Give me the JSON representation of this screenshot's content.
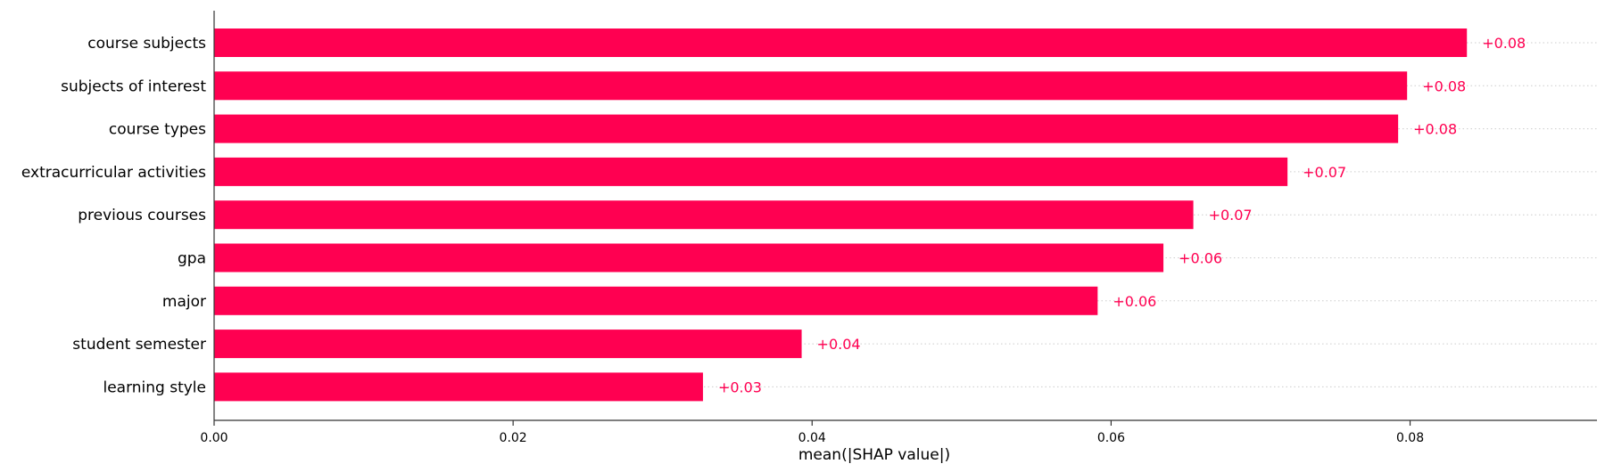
{
  "chart_data": {
    "type": "bar",
    "orientation": "horizontal",
    "categories": [
      "course subjects",
      "subjects of interest",
      "course types",
      "extracurricular activities",
      "previous courses",
      "gpa",
      "major",
      "student semester",
      "learning style"
    ],
    "values": [
      0.0838,
      0.0798,
      0.0792,
      0.0718,
      0.0655,
      0.0635,
      0.0591,
      0.0393,
      0.0327
    ],
    "data_labels": [
      "+0.08",
      "+0.08",
      "+0.08",
      "+0.07",
      "+0.07",
      "+0.06",
      "+0.06",
      "+0.04",
      "+0.03"
    ],
    "title": "",
    "xlabel": "mean(|SHAP value|)",
    "ylabel": "",
    "xlim": [
      0,
      0.0925
    ],
    "xticks": [
      0,
      0.02,
      0.04,
      0.06,
      0.08
    ],
    "xtick_labels": [
      "0.00",
      "0.02",
      "0.04",
      "0.06",
      "0.08"
    ],
    "grid": "dotted horizontal guide lines per row",
    "legend": "none",
    "colors": {
      "bar": "#ff0051",
      "label": "#ff0051",
      "axis": "#333333",
      "guide": "#cccccc"
    }
  }
}
